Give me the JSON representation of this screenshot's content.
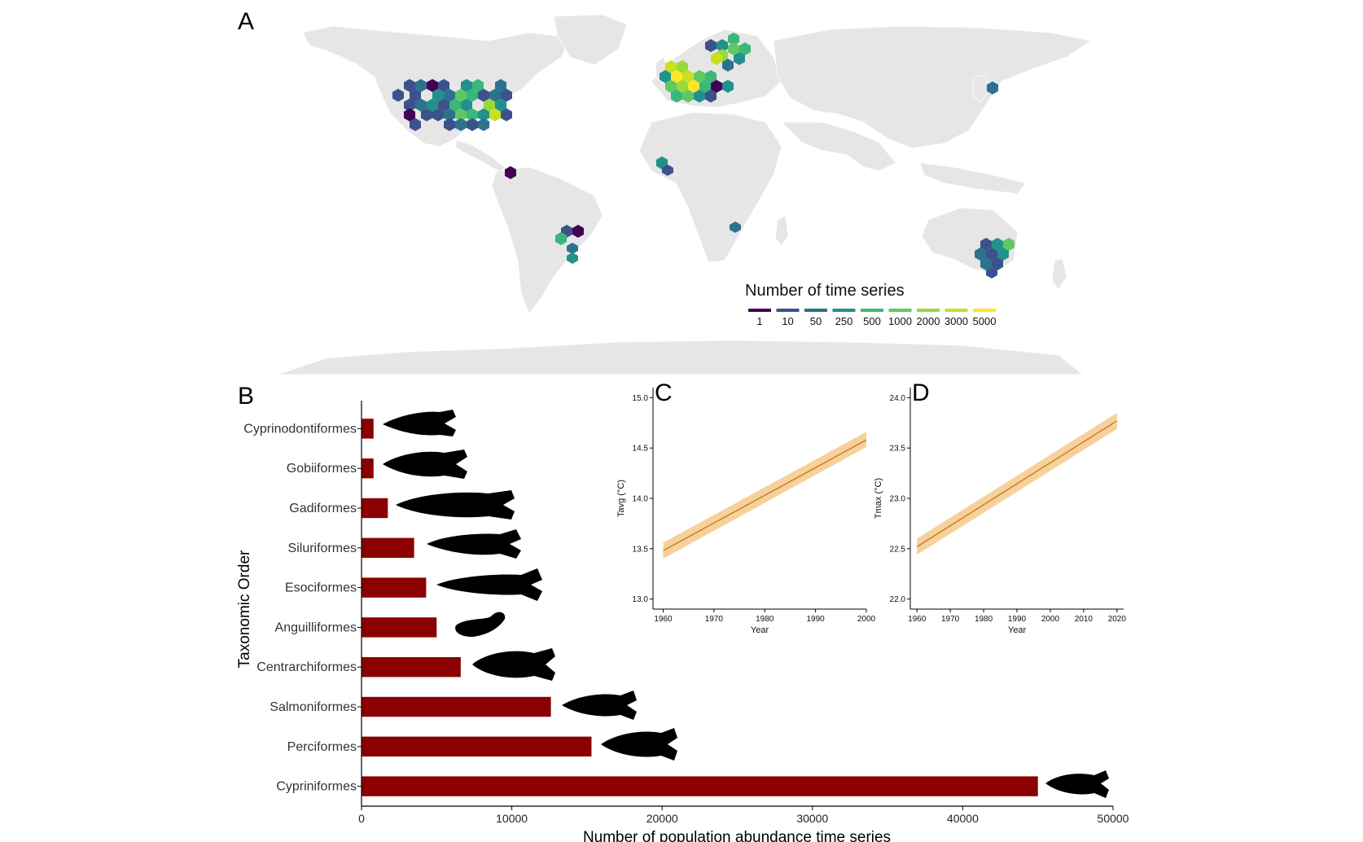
{
  "panel_a": {
    "letter": "A",
    "legend_title": "Number of time series",
    "legend_entries": [
      {
        "label": "1",
        "color": "#440154"
      },
      {
        "label": "10",
        "color": "#3b528b"
      },
      {
        "label": "50",
        "color": "#2c728e"
      },
      {
        "label": "250",
        "color": "#21918c"
      },
      {
        "label": "500",
        "color": "#3bb77a"
      },
      {
        "label": "1000",
        "color": "#5ec962"
      },
      {
        "label": "2000",
        "color": "#9ad93b"
      },
      {
        "label": "3000",
        "color": "#c8e020"
      },
      {
        "label": "5000",
        "color": "#fde725"
      }
    ]
  },
  "chart_data": [
    {
      "panel": "B",
      "type": "bar",
      "orientation": "horizontal",
      "categories": [
        "Cyprinodontiformes",
        "Gobiiformes",
        "Gadiformes",
        "Siluriformes",
        "Esociformes",
        "Anguilliformes",
        "Centrarchiformes",
        "Salmoniformes",
        "Perciformes",
        "Cypriniformes"
      ],
      "values": [
        800,
        800,
        1750,
        3500,
        4300,
        5000,
        6600,
        12600,
        15300,
        45000
      ],
      "xlabel": "Number of population abundance time series",
      "ylabel": "Taxonomic Order",
      "xlim": [
        0,
        50000
      ],
      "xticks": [
        "0",
        "10000",
        "20000",
        "30000",
        "40000",
        "50000"
      ],
      "bar_color": "#8b0000",
      "grid": false
    },
    {
      "panel": "C",
      "type": "line",
      "xlabel": "Year",
      "ylabel": "Tavg (°C)",
      "xlim": [
        1958,
        2000
      ],
      "ylim": [
        12.9,
        15.1
      ],
      "xticks": [
        "1960",
        "1970",
        "1980",
        "1990",
        "2000"
      ],
      "yticks": [
        "13.0",
        "13.5",
        "14.0",
        "14.5",
        "15.0"
      ],
      "x": [
        1960,
        2000
      ],
      "y": [
        13.48,
        14.58
      ],
      "ci_lower": [
        13.4,
        14.51
      ],
      "ci_upper": [
        13.56,
        14.66
      ],
      "line_color": "#c97a1e",
      "band_color": "#f5c98a",
      "grid": false
    },
    {
      "panel": "D",
      "type": "line",
      "xlabel": "Year",
      "ylabel": "Tmax (°C)",
      "xlim": [
        1958,
        2022
      ],
      "ylim": [
        21.9,
        24.1
      ],
      "xticks": [
        "1960",
        "1970",
        "1980",
        "1990",
        "2000",
        "2010",
        "2020"
      ],
      "yticks": [
        "22.0",
        "22.5",
        "23.0",
        "23.5",
        "24.0"
      ],
      "x": [
        1960,
        2020
      ],
      "y": [
        22.52,
        23.77
      ],
      "ci_lower": [
        22.44,
        23.69
      ],
      "ci_upper": [
        22.6,
        23.85
      ],
      "line_color": "#c97a1e",
      "band_color": "#f5c98a",
      "grid": false
    }
  ]
}
